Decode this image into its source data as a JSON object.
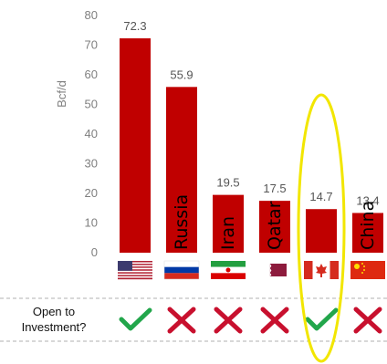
{
  "chart_data": {
    "type": "bar",
    "title": "",
    "xlabel": "",
    "ylabel": "Bcf/d",
    "ylim": [
      0,
      80
    ],
    "yticks": [
      0,
      10,
      20,
      30,
      40,
      50,
      60,
      70,
      80
    ],
    "grid": false,
    "categories": [
      "United States",
      "Russia",
      "Iran",
      "Qatar",
      "Canada",
      "China"
    ],
    "category_labels": [
      "",
      "Russia",
      "Iran",
      "Qatar",
      "",
      "China"
    ],
    "flag_icons": [
      "us-flag-icon",
      "russia-flag-icon",
      "iran-flag-icon",
      "qatar-flag-icon",
      "canada-flag-icon",
      "china-flag-icon"
    ],
    "values": [
      72.3,
      55.9,
      19.5,
      17.5,
      14.7,
      13.4
    ],
    "value_labels": [
      "72.3",
      "55.9",
      "19.5",
      "17.5",
      "14.7",
      "13.4"
    ],
    "bar_color": "#c00000",
    "row_question_line1": "Open to",
    "row_question_line2": "Investment?",
    "open_to_investment": [
      true,
      false,
      false,
      false,
      true,
      false
    ],
    "check_color": "#22a64b",
    "cross_color": "#c8102e",
    "highlight_color": "#f2e600",
    "highlighted_category": "Canada"
  }
}
